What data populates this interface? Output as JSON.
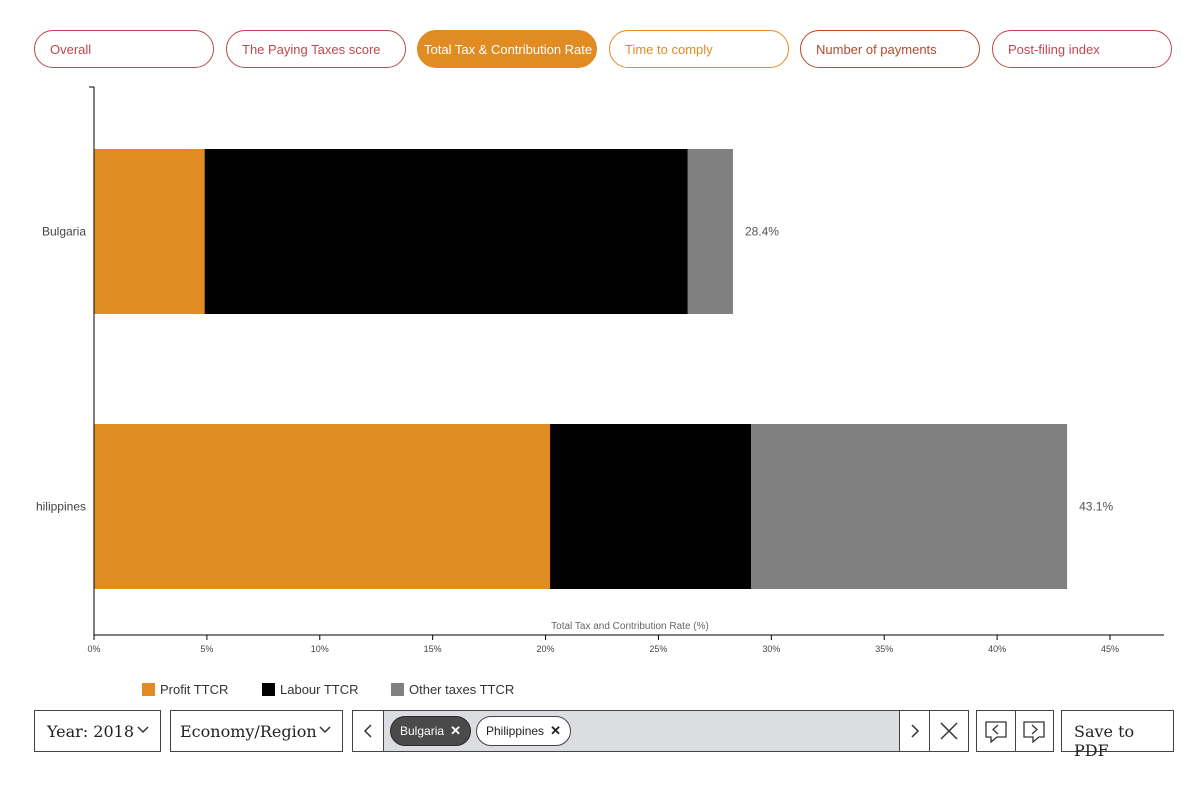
{
  "tabs": [
    {
      "label": "Overall",
      "active": false
    },
    {
      "label": "The Paying Taxes score",
      "active": false
    },
    {
      "label": "Total Tax & Contribution Rate",
      "active": true
    },
    {
      "label": "Time to comply",
      "active": false
    },
    {
      "label": "Number of payments",
      "active": false
    },
    {
      "label": "Post-filing index",
      "active": false
    }
  ],
  "chart_data": {
    "type": "bar",
    "orientation": "horizontal",
    "stacked": true,
    "categories": [
      "Bulgaria",
      "hilippines"
    ],
    "series": [
      {
        "name": "Profit TTCR",
        "color": "#e08c23",
        "values": [
          4.9,
          20.2
        ]
      },
      {
        "name": "Labour TTCR",
        "color": "#000000",
        "values": [
          21.4,
          8.9
        ]
      },
      {
        "name": "Other taxes TTCR",
        "color": "#808080",
        "values": [
          2.0,
          14.0
        ]
      }
    ],
    "totals": [
      "28.4%",
      "43.1%"
    ],
    "xlabel": "Total Tax and Contribution Rate (%)",
    "xlim": [
      0,
      45
    ],
    "xticks": [
      "0%",
      "5%",
      "10%",
      "15%",
      "20%",
      "25%",
      "30%",
      "35%",
      "40%",
      "45%"
    ],
    "grid": false,
    "legend_position": "bottom-left"
  },
  "controls": {
    "year_label": "Year: 2018",
    "economy_label": "Economy/Region",
    "chips": [
      "Bulgaria",
      "Philippines"
    ],
    "chip_remove": "✕",
    "save_label": "Save to PDF"
  },
  "icons": {
    "dropdown": "chevron-down-icon",
    "prev": "chevron-left-icon",
    "next": "chevron-right-icon",
    "clear": "close-icon",
    "prev_comment": "comment-prev-icon",
    "next_comment": "comment-next-icon"
  }
}
